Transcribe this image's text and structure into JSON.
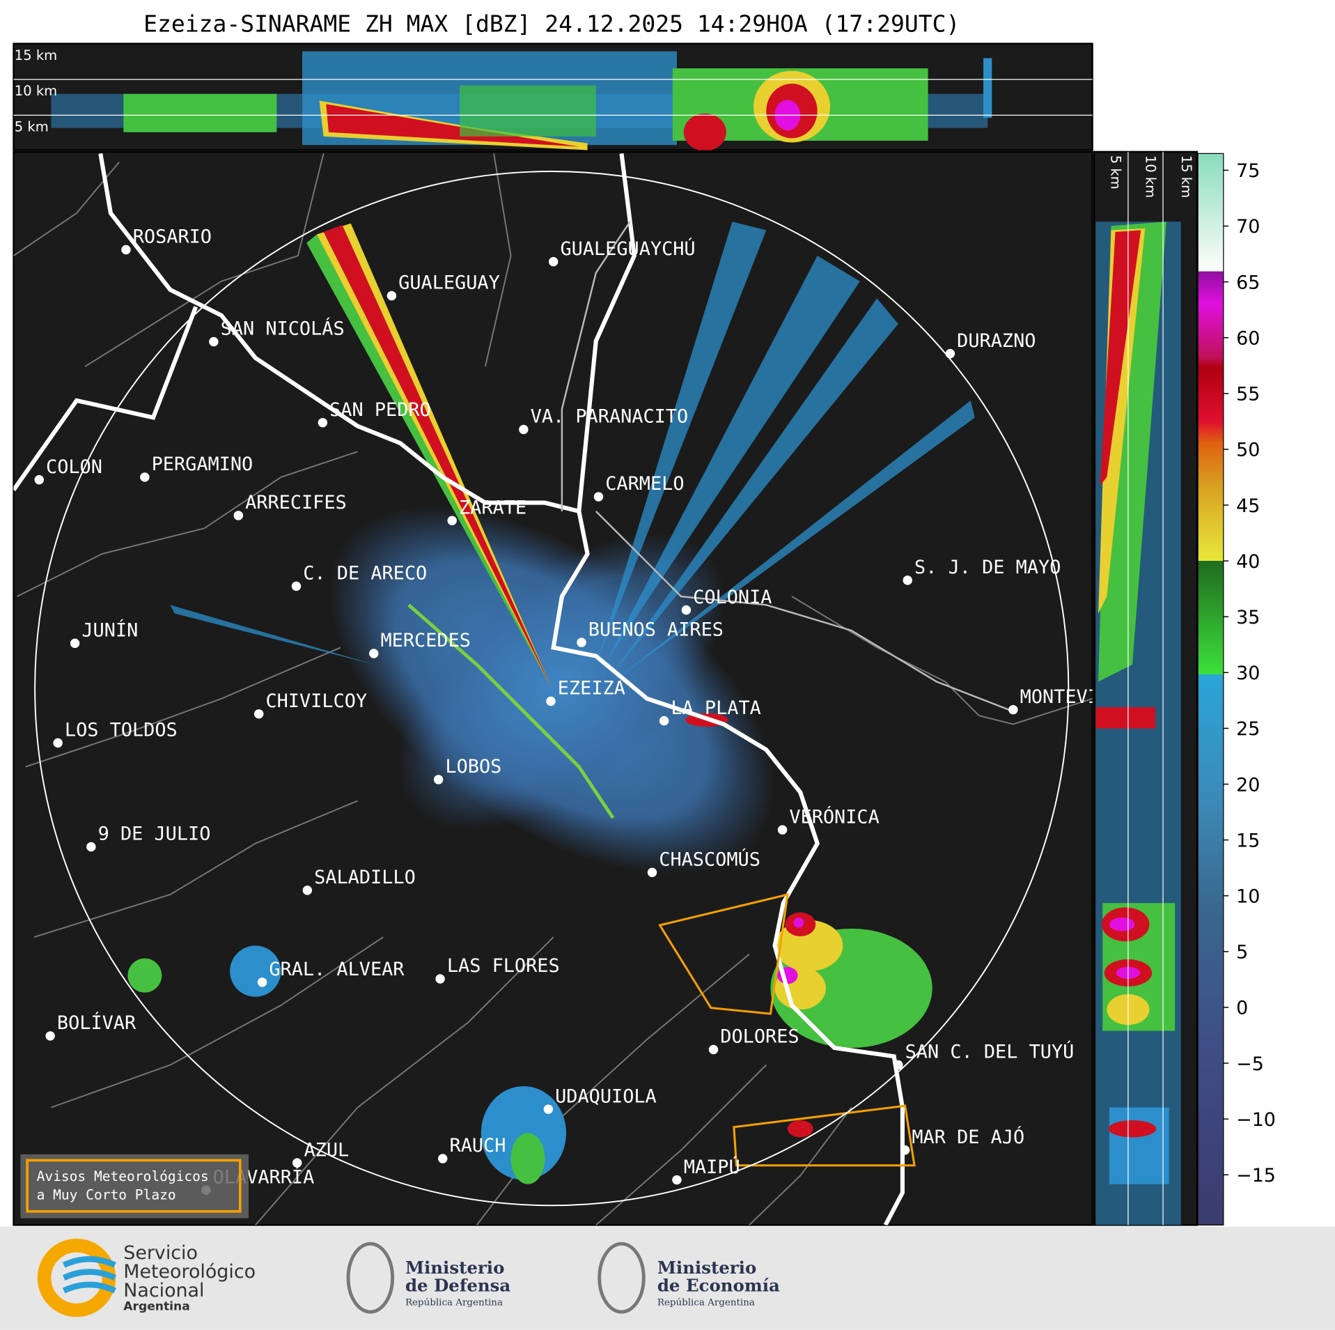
{
  "title": "Ezeiza-SINARAME ZH MAX [dBZ] 24.12.2025 14:29HOA (17:29UTC)",
  "top_panel": {
    "labels": [
      "15 km",
      "10 km",
      "5 km"
    ]
  },
  "side_panel": {
    "labels": [
      "5 km",
      "10 km",
      "15 km"
    ]
  },
  "cities": [
    "ROSARIO",
    "GUALEGUAYCHÚ",
    "GUALEGUAY",
    "SAN NICOLÁS",
    "DURAZNO",
    "SAN PEDRO",
    "VA. PARANACITO",
    "COLON",
    "PERGAMINO",
    "CARMELO",
    "ARRECIFES",
    "ZÁRATE",
    "S. J. DE MAYO",
    "C. DE ARECO",
    "COLONIA",
    "JUNÍN",
    "BUENOS AIRES",
    "MERCEDES",
    "EZEIZA",
    "CHIVILCOY",
    "MONTEVIDEO",
    "LA PLATA",
    "LOS TOLDOS",
    "LOBOS",
    "VERÓNICA",
    "9 DE JULIO",
    "CHASCOMÚS",
    "SALADILLO",
    "GRAL. ALVEAR",
    "LAS FLORES",
    "BOLÍVAR",
    "DOLORES",
    "SAN C. DEL TUYÚ",
    "UDAQUIOLA",
    "MAR DE AJÓ",
    "AZUL",
    "RAUCH",
    "OLAVARRÍA",
    "MAIPÚ"
  ],
  "legend": [
    "Avisos Meteorológicos",
    "a Muy Corto Plazo"
  ],
  "colorbar": {
    "ylim": [
      -19.5,
      76.5
    ],
    "yticks": [
      {
        "value": -15,
        "label": "−15"
      },
      {
        "value": -10,
        "label": "−10"
      },
      {
        "value": -5,
        "label": "−5"
      },
      0,
      5,
      10,
      15,
      20,
      25,
      30,
      35,
      40,
      45,
      50,
      55,
      60,
      65,
      70,
      75
    ]
  },
  "footer": {
    "smn": [
      "Servicio",
      "Meteorológico",
      "Nacional",
      "Argentina"
    ],
    "defensa": [
      "Ministerio",
      "de Defensa",
      "República Argentina"
    ],
    "economia": [
      "Ministerio",
      "de Economía",
      "República Argentina"
    ]
  }
}
